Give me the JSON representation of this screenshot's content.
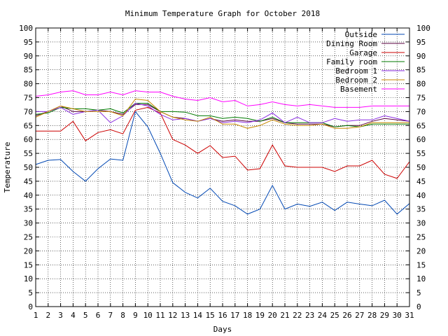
{
  "chart_data": {
    "type": "line",
    "title": "Minimum Temperature Graph for October 2018",
    "xlabel": "Days",
    "ylabel": "Temperature",
    "xlim": [
      1,
      31
    ],
    "ylim": [
      0,
      100
    ],
    "xticks": [
      1,
      2,
      3,
      4,
      5,
      6,
      7,
      8,
      9,
      10,
      11,
      12,
      13,
      14,
      15,
      16,
      17,
      18,
      19,
      20,
      21,
      22,
      23,
      24,
      25,
      26,
      27,
      28,
      29,
      30,
      31
    ],
    "yticks": [
      0,
      5,
      10,
      15,
      20,
      25,
      30,
      35,
      40,
      45,
      50,
      55,
      60,
      65,
      70,
      75,
      80,
      85,
      90,
      95,
      100
    ],
    "grid": true,
    "legend": "top-right",
    "x": [
      1,
      2,
      3,
      4,
      5,
      6,
      7,
      8,
      9,
      10,
      11,
      12,
      13,
      14,
      15,
      16,
      17,
      18,
      19,
      20,
      21,
      22,
      23,
      24,
      25,
      26,
      27,
      28,
      29,
      30,
      31
    ],
    "series": [
      {
        "name": "Outside",
        "color": "#0047b3",
        "values": [
          51,
          52.5,
          52.8,
          48.5,
          45,
          49.5,
          53,
          52.5,
          70,
          64.5,
          55,
          44.5,
          41,
          39,
          42.5,
          37.8,
          36.2,
          33.2,
          35,
          43.5,
          35,
          36.8,
          36,
          37.5,
          34.5,
          37.5,
          36.8,
          36.2,
          38.2,
          33.2,
          37
        ]
      },
      {
        "name": "Dining Room",
        "color": "#5a0040",
        "values": [
          68.5,
          70,
          72,
          70,
          70,
          70.5,
          70,
          69,
          72.5,
          72.5,
          70,
          68,
          67.5,
          66.5,
          67.5,
          66.5,
          67,
          66.5,
          66.5,
          67.5,
          66,
          65.5,
          65.5,
          65.5,
          64.5,
          65,
          65,
          66.5,
          67.5,
          67,
          66.5
        ]
      },
      {
        "name": "Garage",
        "color": "#cc0000",
        "values": [
          63,
          63,
          63,
          66.5,
          59.5,
          62.5,
          63.5,
          62,
          70.5,
          71.5,
          69.5,
          60,
          58,
          55,
          57.8,
          53.5,
          54,
          49,
          49.5,
          58,
          50.5,
          50,
          50,
          50,
          48.5,
          50.5,
          50.5,
          52.5,
          47.5,
          46,
          52
        ]
      },
      {
        "name": "Family room",
        "color": "#007a00",
        "values": [
          69,
          69.5,
          71.5,
          71,
          71,
          70.5,
          71,
          69.5,
          73,
          73,
          70,
          70,
          69.8,
          68.5,
          68.5,
          67.5,
          68,
          67.5,
          66.5,
          68,
          66,
          66,
          66,
          66,
          64.5,
          65,
          64.5,
          65.5,
          65.5,
          65.5,
          65.5
        ]
      },
      {
        "name": "Bedroom 1",
        "color": "#8a2be2",
        "values": [
          70,
          70,
          71.5,
          69,
          70,
          70.5,
          66,
          68.5,
          73,
          72,
          69,
          67,
          67.5,
          66.5,
          67.5,
          66,
          66.5,
          66,
          67,
          69.5,
          66,
          68,
          66,
          66,
          67.5,
          66.5,
          67,
          67,
          68.5,
          67.5,
          66.5
        ]
      },
      {
        "name": "Bedroom 2",
        "color": "#c88a00",
        "values": [
          68,
          70,
          72,
          71,
          70,
          70,
          70,
          68.5,
          74.5,
          74,
          70,
          68,
          67,
          66.5,
          68,
          65.5,
          65.5,
          64,
          65,
          67,
          65.5,
          65,
          65,
          65.5,
          64,
          64,
          64.5,
          66,
          66,
          66,
          66
        ]
      },
      {
        "name": "Basement",
        "color": "#ff00ff",
        "values": [
          75.5,
          76,
          77,
          77.5,
          76,
          76,
          77,
          76,
          77.5,
          77,
          77,
          75.5,
          74.5,
          74,
          75,
          73.5,
          74,
          72,
          72.5,
          73.5,
          72.5,
          72,
          72.5,
          72,
          71.5,
          71.5,
          71.5,
          72,
          72,
          72,
          72
        ]
      }
    ]
  }
}
